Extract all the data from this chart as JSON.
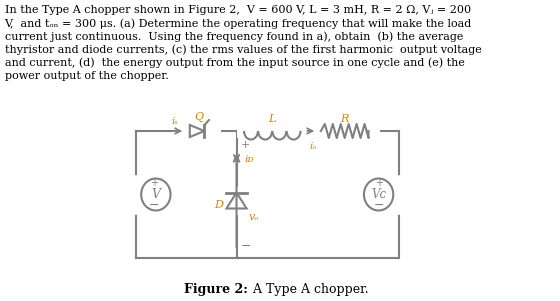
{
  "text_lines": [
    "In the Type A chopper shown in Figure 2,  V = 600 V, L = 3 mH, R = 2 Ω, Vⱼ = 200",
    "V,  and tₒₙ = 300 μs. (a) Determine the operating frequency that will make the load",
    "current just continuous.  Using the frequency found in a), obtain  (b) the average",
    "thyristor and diode currents, (c) the rms values of the first harmonic  output voltage",
    "and current, (d)  the energy output from the input source in one cycle and (e) the",
    "power output of the chopper."
  ],
  "figure_caption_bold": "Figure 2:",
  "figure_caption_normal": " A Type A chopper.",
  "background_color": "#ffffff",
  "text_color": "#000000",
  "wire_color": "#808080",
  "label_color": "#cc8800",
  "circuit_color": "#404040"
}
